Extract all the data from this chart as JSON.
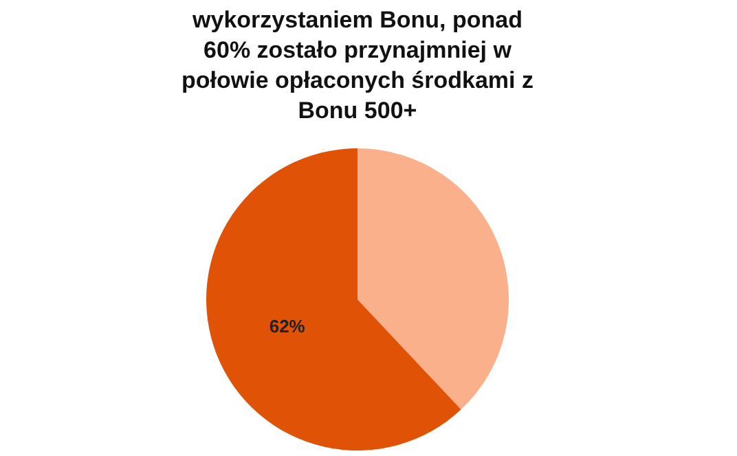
{
  "chart_data": {
    "type": "pie",
    "title": "wykorzystaniem Bonu, ponad 60% zostało przynajmniej w połowie opłaconych środkami z Bonu 500+",
    "categories": [
      null,
      null
    ],
    "values": [
      38,
      62
    ],
    "colors": [
      "#fbb08c",
      "#e05206"
    ],
    "value_labels": [
      null,
      "62%"
    ]
  }
}
